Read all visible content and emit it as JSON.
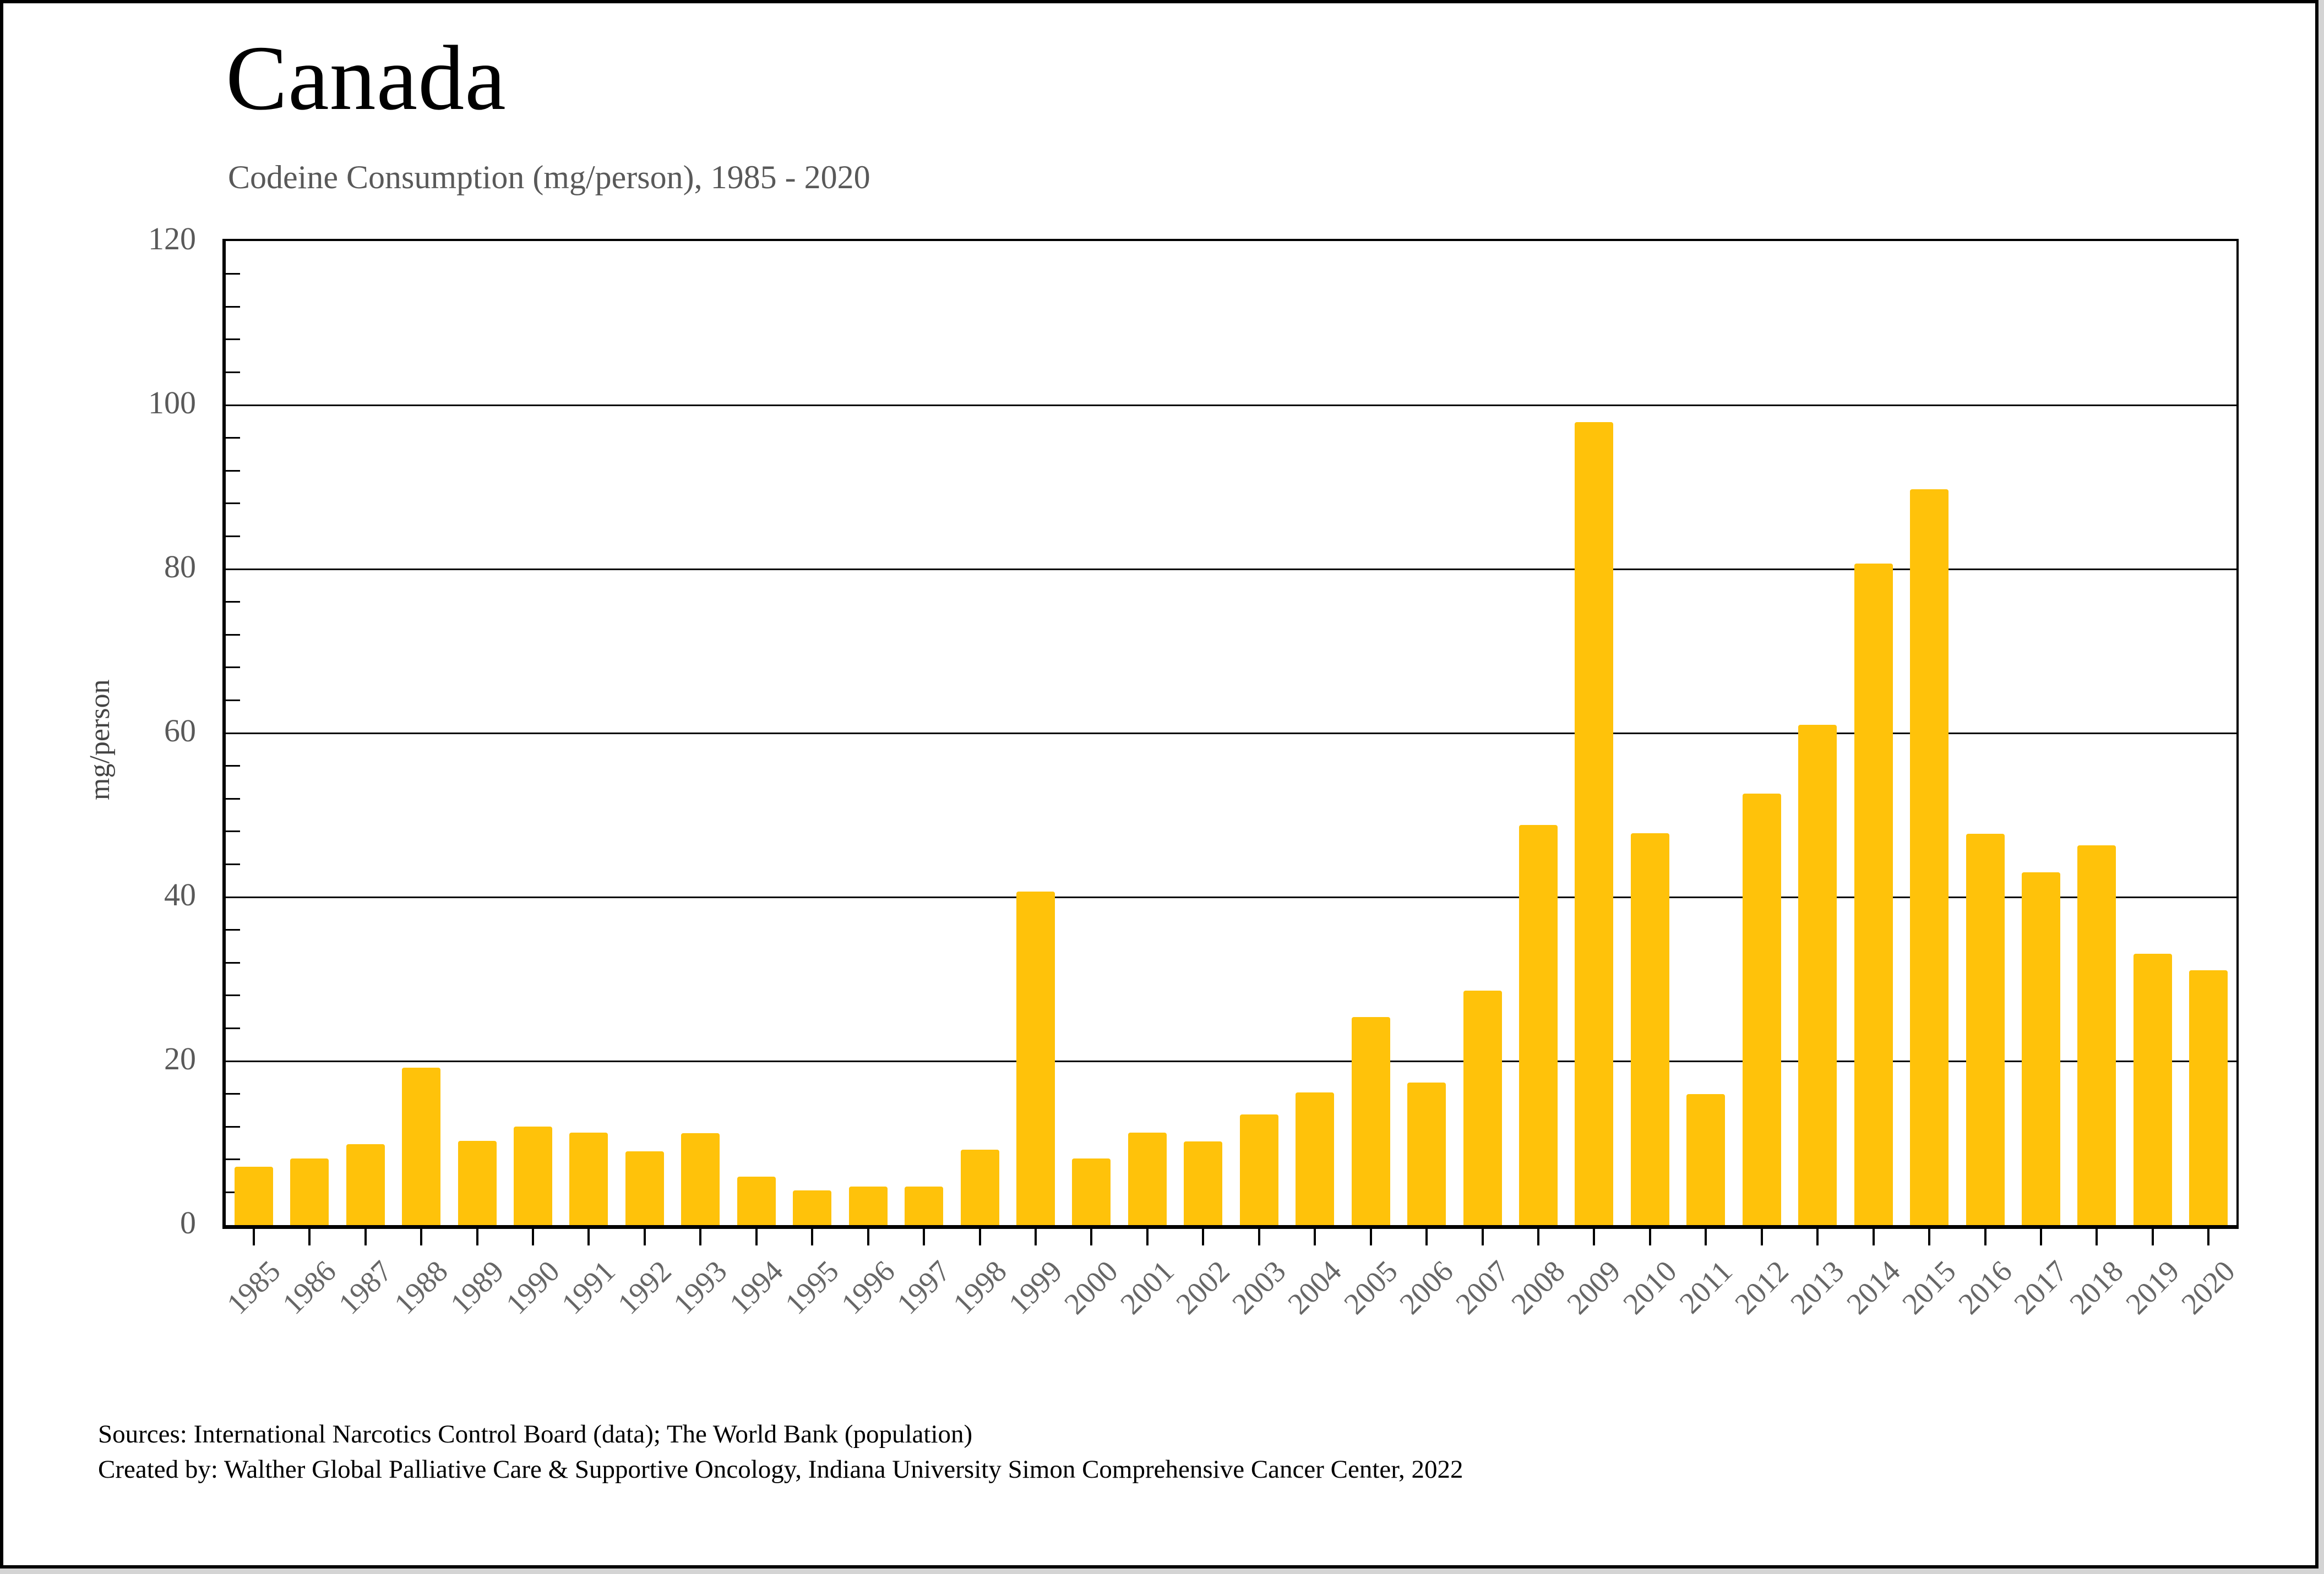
{
  "page": {
    "title": "Canada",
    "subtitle": "Codeine Consumption (mg/person), 1985 - 2020"
  },
  "footer": {
    "line1": "Sources: International Narcotics Control Board (data); The World Bank (population)",
    "line2": "Created by: Walther Global Palliative Care & Supportive Oncology, Indiana University Simon Comprehensive Cancer Center, 2022"
  },
  "chart_data": {
    "type": "bar",
    "title": "Canada",
    "subtitle": "Codeine Consumption (mg/person), 1985 - 2020",
    "xlabel": "",
    "ylabel": "mg/person",
    "ylim": [
      0,
      120
    ],
    "ytick_interval": 20,
    "yticks": [
      0,
      20,
      40,
      60,
      80,
      100,
      120
    ],
    "minor_tick_interval": 4,
    "grid": "horizontal",
    "legend": "none",
    "bar_color": "#FFC20A",
    "categories": [
      1985,
      1986,
      1987,
      1988,
      1989,
      1990,
      1991,
      1992,
      1993,
      1994,
      1995,
      1996,
      1997,
      1998,
      1999,
      2000,
      2001,
      2002,
      2003,
      2004,
      2005,
      2006,
      2007,
      2008,
      2009,
      2010,
      2011,
      2012,
      2013,
      2014,
      2015,
      2016,
      2017,
      2018,
      2019,
      2020
    ],
    "values": [
      7.1,
      8.1,
      9.9,
      19.2,
      10.3,
      12.0,
      11.3,
      9.0,
      11.2,
      5.9,
      4.2,
      4.7,
      4.7,
      9.2,
      40.7,
      8.1,
      11.3,
      10.2,
      13.5,
      16.2,
      25.4,
      17.4,
      28.6,
      48.8,
      97.9,
      47.8,
      16.0,
      52.6,
      61.0,
      80.7,
      89.7,
      47.7,
      43.0,
      46.3,
      33.1,
      31.1
    ]
  },
  "colors": {
    "bar": "#FFC20A",
    "gridline": "#000000",
    "axis_text": "#595959",
    "subtitle_text": "#595959",
    "frame_border": "#000000",
    "background": "#ffffff"
  }
}
